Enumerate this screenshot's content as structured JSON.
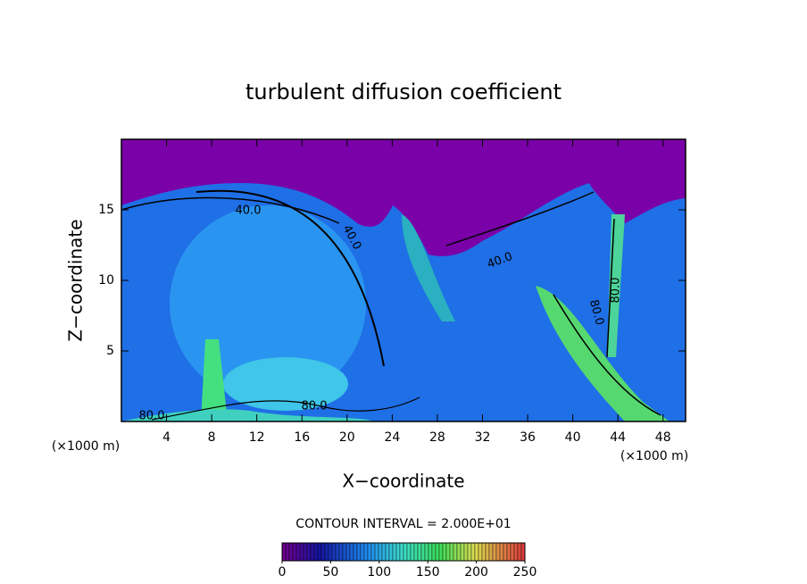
{
  "chart_data": {
    "type": "contour",
    "title": "turbulent diffusion coefficient",
    "x_label": "X−coordinate",
    "y_label": "Z−coordinate",
    "x_unit": "(×1000 m)",
    "xlim": [
      0,
      50
    ],
    "xticks": [
      4,
      8,
      12,
      16,
      20,
      24,
      28,
      32,
      36,
      40,
      44,
      48
    ],
    "ylim": [
      0,
      20
    ],
    "yticks": [
      5,
      10,
      15
    ],
    "contour_labels": [
      "40.0",
      "40.0",
      "40.0",
      "80.0",
      "80.0",
      "80.0",
      "80.0"
    ],
    "contour_interval": "CONTOUR INTERVAL = 2.000E+01",
    "colorbar": {
      "lim": [
        0,
        250
      ],
      "ticks": [
        0,
        50,
        100,
        150,
        200,
        250
      ]
    }
  }
}
